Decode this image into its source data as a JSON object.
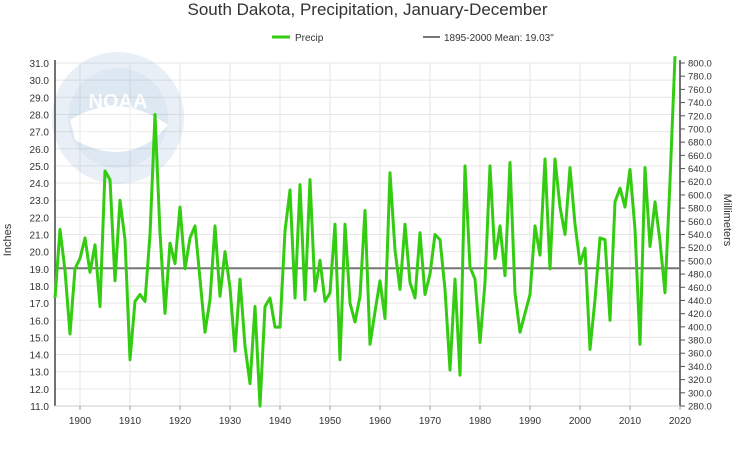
{
  "chart_data": {
    "type": "line",
    "title": "South Dakota, Precipitation, January-December",
    "ylabel": "Inches",
    "y2label": "Millimeters",
    "ylim": [
      11.0,
      31.0
    ],
    "y2lim": [
      280.0,
      800.0
    ],
    "xlim": [
      1895,
      2020
    ],
    "x_ticks": [
      "1900",
      "1910",
      "1920",
      "1930",
      "1940",
      "1950",
      "1960",
      "1970",
      "1980",
      "1990",
      "2000",
      "2010",
      "2020"
    ],
    "y_ticks": [
      "11.0",
      "12.0",
      "13.0",
      "14.0",
      "15.0",
      "16.0",
      "17.0",
      "18.0",
      "19.0",
      "20.0",
      "21.0",
      "22.0",
      "23.0",
      "24.0",
      "25.0",
      "26.0",
      "27.0",
      "28.0",
      "29.0",
      "30.0",
      "31.0"
    ],
    "y2_ticks": [
      "280.0",
      "300.0",
      "320.0",
      "340.0",
      "360.0",
      "380.0",
      "400.0",
      "420.0",
      "440.0",
      "460.0",
      "480.0",
      "500.0",
      "520.0",
      "540.0",
      "560.0",
      "580.0",
      "600.0",
      "620.0",
      "640.0",
      "660.0",
      "680.0",
      "700.0",
      "720.0",
      "740.0",
      "760.0",
      "780.0",
      "800.0"
    ],
    "legend": {
      "position": "top",
      "series_label": "Precip",
      "mean_label": "1895-2000 Mean: 19.03\""
    },
    "mean_value": 19.03,
    "colors": {
      "series": "#33cc11",
      "mean": "#777777",
      "grid": "#e6e6e6"
    },
    "series": [
      {
        "name": "Precip",
        "start_year": 1895,
        "values": [
          17.3,
          21.3,
          18.9,
          15.2,
          19.0,
          19.6,
          20.8,
          18.8,
          20.4,
          16.8,
          24.7,
          24.2,
          18.3,
          23.0,
          20.7,
          13.7,
          17.1,
          17.5,
          17.1,
          21.0,
          28.0,
          21.1,
          16.4,
          20.5,
          19.3,
          22.6,
          19.0,
          20.8,
          21.5,
          18.4,
          15.3,
          17.2,
          21.5,
          17.4,
          20.0,
          17.9,
          14.2,
          18.4,
          14.5,
          12.3,
          16.8,
          11.0,
          16.8,
          17.3,
          15.6,
          15.6,
          21.2,
          23.6,
          17.3,
          23.9,
          17.2,
          24.2,
          17.7,
          19.5,
          17.1,
          17.6,
          21.6,
          13.7,
          21.6,
          17.0,
          15.9,
          17.4,
          22.4,
          14.6,
          16.5,
          18.3,
          16.1,
          24.6,
          20.1,
          17.8,
          21.6,
          18.2,
          17.3,
          21.1,
          17.5,
          18.7,
          21.0,
          20.7,
          17.8,
          13.1,
          18.4,
          12.8,
          25.0,
          19.1,
          18.4,
          14.7,
          18.2,
          25.0,
          19.6,
          21.5,
          18.6,
          25.2,
          17.6,
          15.3,
          16.4,
          17.5,
          21.5,
          19.8,
          25.4,
          19.0,
          25.4,
          22.6,
          21.0,
          24.9,
          21.6,
          19.3,
          20.2,
          14.3,
          17.2,
          20.8,
          20.7,
          16.0,
          22.9,
          23.7,
          22.6,
          24.8,
          21.3,
          14.6,
          24.9,
          20.3,
          22.9,
          20.6,
          17.6,
          24.1,
          31.4
        ]
      }
    ]
  }
}
